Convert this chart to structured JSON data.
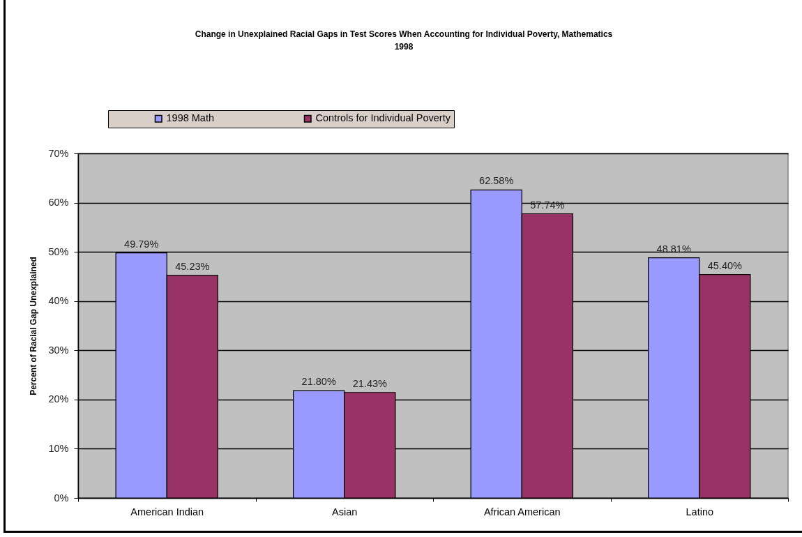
{
  "chart_data": {
    "type": "bar",
    "title": "Change in Unexplained Racial Gaps in Test Scores When Accounting for Individual Poverty, Mathematics\n1998",
    "ylabel": "Percent of Racial Gap Unexplained",
    "categories": [
      "American Indian",
      "Asian",
      "African American",
      "Latino"
    ],
    "series": [
      {
        "name": "1998 Math",
        "color": "#9999ff",
        "values": [
          49.79,
          21.8,
          62.58,
          48.81
        ],
        "value_labels": [
          "49.79%",
          "21.80%",
          "62.58%",
          "48.81%"
        ]
      },
      {
        "name": "Controls for Individual Poverty",
        "color": "#993366",
        "values": [
          45.23,
          21.43,
          57.74,
          45.4
        ],
        "value_labels": [
          "45.23%",
          "21.43%",
          "57.74%",
          "45.40%"
        ]
      }
    ],
    "ylim": [
      0,
      70
    ],
    "yticks": [
      {
        "value": 0,
        "label": "0%"
      },
      {
        "value": 10,
        "label": "10%"
      },
      {
        "value": 20,
        "label": "20%"
      },
      {
        "value": 30,
        "label": "30%"
      },
      {
        "value": 40,
        "label": "40%"
      },
      {
        "value": 50,
        "label": "50%"
      },
      {
        "value": 60,
        "label": "60%"
      },
      {
        "value": 70,
        "label": "70%"
      }
    ],
    "grid": "y",
    "legend": "top left"
  }
}
